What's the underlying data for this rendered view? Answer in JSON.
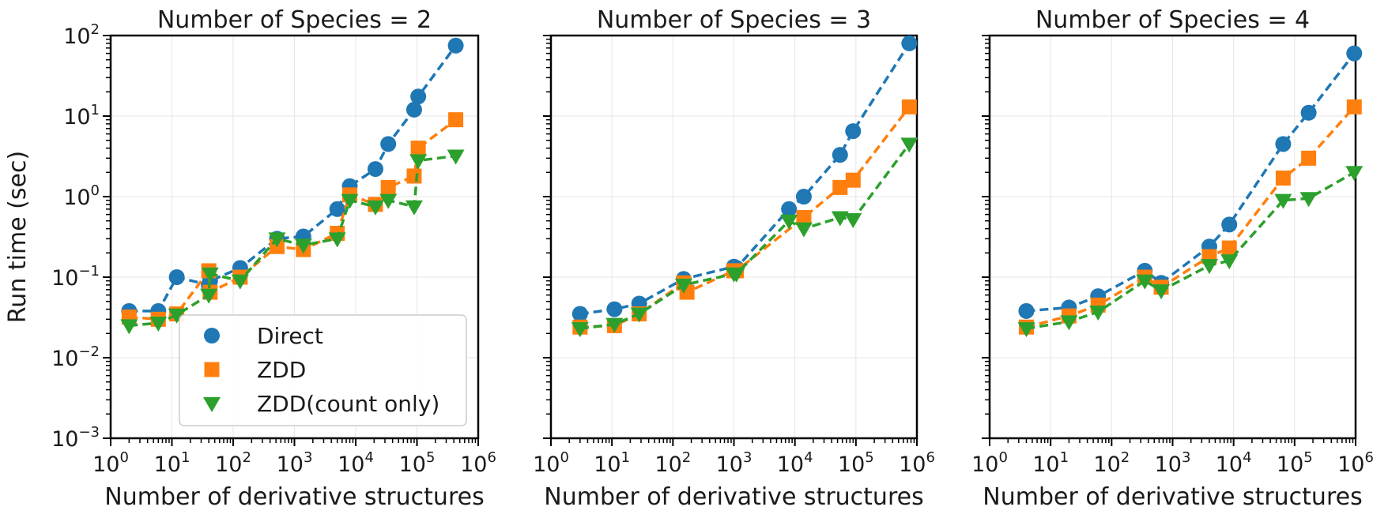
{
  "chart_data": [
    {
      "type": "line",
      "title": "Number of Species = 2",
      "xlabel": "Number of derivative structures",
      "ylabel": "Run time (sec)",
      "xscale": "log",
      "yscale": "log",
      "xlim": [
        1,
        1000000
      ],
      "ylim": [
        0.001,
        100
      ],
      "x_tick_labels": [
        "10^0",
        "10^1",
        "10^2",
        "10^3",
        "10^4",
        "10^5",
        "10^6"
      ],
      "y_tick_labels": [
        "10^-3",
        "10^-2",
        "10^-1",
        "10^0",
        "10^1",
        "10^2"
      ],
      "grid": true,
      "legend": "lower-center",
      "series": [
        {
          "name": "Direct",
          "marker": "circle",
          "color": "#1f77b4",
          "x": [
            2,
            6,
            12,
            40,
            42,
            130,
            520,
            1400,
            5000,
            8000,
            21000,
            34000,
            90000,
            105000,
            430000
          ],
          "y": [
            0.038,
            0.038,
            0.1,
            0.08,
            0.09,
            0.13,
            0.3,
            0.32,
            0.7,
            1.35,
            2.2,
            4.5,
            12,
            17.5,
            75
          ]
        },
        {
          "name": "ZDD",
          "marker": "square",
          "color": "#ff7f0e",
          "x": [
            2,
            6,
            12,
            40,
            42,
            130,
            520,
            1400,
            5000,
            8000,
            21000,
            34000,
            90000,
            105000,
            430000
          ],
          "y": [
            0.032,
            0.03,
            0.035,
            0.12,
            0.065,
            0.1,
            0.24,
            0.22,
            0.35,
            1.05,
            0.8,
            1.3,
            1.8,
            4,
            9
          ]
        },
        {
          "name": "ZDD(count only)",
          "marker": "triangle-down",
          "color": "#2ca02c",
          "x": [
            2,
            6,
            12,
            40,
            42,
            130,
            520,
            1400,
            5000,
            8000,
            21000,
            34000,
            90000,
            105000,
            430000
          ],
          "y": [
            0.025,
            0.027,
            0.034,
            0.06,
            0.11,
            0.09,
            0.3,
            0.25,
            0.3,
            0.9,
            0.75,
            0.9,
            0.75,
            2.8,
            3.2
          ]
        }
      ]
    },
    {
      "type": "line",
      "title": "Number of Species = 3",
      "xlabel": "Number of derivative structures",
      "ylabel": "",
      "xscale": "log",
      "yscale": "log",
      "xlim": [
        1,
        1000000
      ],
      "ylim": [
        0.001,
        100
      ],
      "x_tick_labels": [
        "10^0",
        "10^1",
        "10^2",
        "10^3",
        "10^4",
        "10^5",
        "10^6"
      ],
      "grid": true,
      "series": [
        {
          "name": "Direct",
          "marker": "circle",
          "color": "#1f77b4",
          "x": [
            3,
            11,
            28,
            150,
            1000,
            1100,
            8000,
            14000,
            55000,
            90000,
            750000
          ],
          "y": [
            0.035,
            0.04,
            0.047,
            0.095,
            0.135,
            0.13,
            0.7,
            1,
            3.3,
            6.5,
            80
          ]
        },
        {
          "name": "ZDD",
          "marker": "square",
          "color": "#ff7f0e",
          "x": [
            3,
            11,
            28,
            150,
            170,
            1000,
            1100,
            14000,
            55000,
            90000,
            750000
          ],
          "y": [
            0.024,
            0.025,
            0.035,
            0.085,
            0.065,
            0.12,
            0.12,
            0.55,
            1.3,
            1.6,
            13
          ]
        },
        {
          "name": "ZDD(count only)",
          "marker": "triangle-down",
          "color": "#2ca02c",
          "x": [
            3,
            11,
            28,
            150,
            1000,
            1100,
            8000,
            14000,
            55000,
            90000,
            750000
          ],
          "y": [
            0.023,
            0.026,
            0.035,
            0.08,
            0.11,
            0.11,
            0.5,
            0.4,
            0.55,
            0.52,
            4.5
          ]
        }
      ]
    },
    {
      "type": "line",
      "title": "Number of Species = 4",
      "xlabel": "Number of derivative structures",
      "ylabel": "",
      "xscale": "log",
      "yscale": "log",
      "xlim": [
        1,
        1000000
      ],
      "ylim": [
        0.001,
        100
      ],
      "x_tick_labels": [
        "10^0",
        "10^1",
        "10^2",
        "10^3",
        "10^4",
        "10^5",
        "10^6"
      ],
      "grid": true,
      "series": [
        {
          "name": "Direct",
          "marker": "circle",
          "color": "#1f77b4",
          "x": [
            4,
            20,
            60,
            350,
            650,
            4000,
            8500,
            65000,
            170000,
            950000
          ],
          "y": [
            0.038,
            0.042,
            0.058,
            0.12,
            0.085,
            0.24,
            0.45,
            4.5,
            11,
            60
          ]
        },
        {
          "name": "ZDD",
          "marker": "square",
          "color": "#ff7f0e",
          "x": [
            4,
            20,
            60,
            350,
            650,
            4000,
            8500,
            65000,
            170000,
            950000
          ],
          "y": [
            0.024,
            0.033,
            0.045,
            0.1,
            0.075,
            0.18,
            0.23,
            1.7,
            3,
            13
          ]
        },
        {
          "name": "ZDD(count only)",
          "marker": "triangle-down",
          "color": "#2ca02c",
          "x": [
            4,
            20,
            60,
            350,
            650,
            4000,
            8500,
            65000,
            170000,
            950000
          ],
          "y": [
            0.023,
            0.028,
            0.037,
            0.09,
            0.068,
            0.14,
            0.16,
            0.9,
            0.95,
            2
          ]
        }
      ]
    }
  ]
}
